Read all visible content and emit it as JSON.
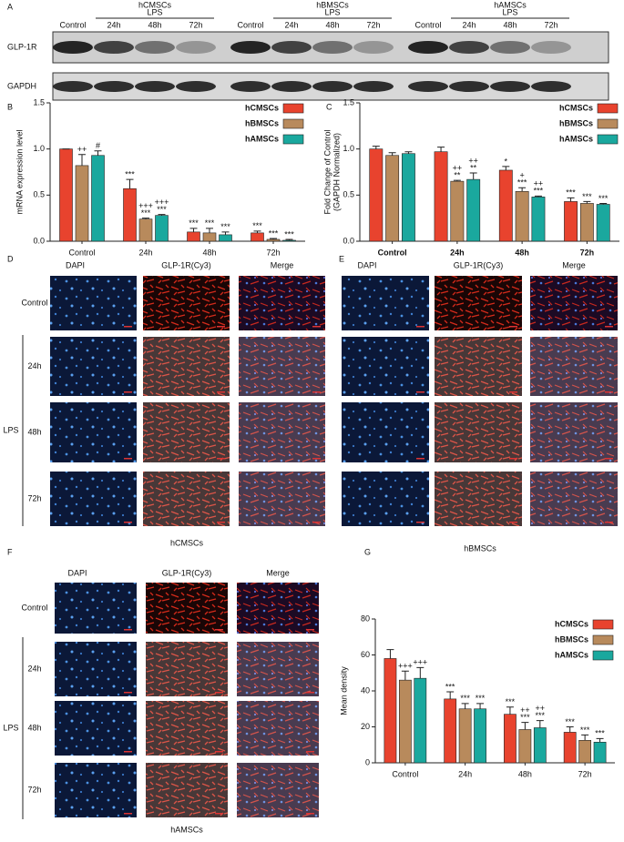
{
  "panel_a": {
    "label": "A",
    "rows": [
      "GLP-1R",
      "GAPDH"
    ],
    "groups": [
      {
        "name": "hCMSCs",
        "treatment": "LPS",
        "lanes": [
          "Control",
          "24h",
          "48h",
          "72h"
        ]
      },
      {
        "name": "hBMSCs",
        "treatment": "LPS",
        "lanes": [
          "Control",
          "24h",
          "48h",
          "72h"
        ]
      },
      {
        "name": "hAMSCs",
        "treatment": "LPS",
        "lanes": [
          "Control",
          "24h",
          "48h",
          "72h"
        ]
      }
    ]
  },
  "chart_data": [
    {
      "type": "bar",
      "panel": "B",
      "ylabel": "mRNA expression level",
      "categories": [
        "Control",
        "24h",
        "48h",
        "72h"
      ],
      "ylim": [
        0,
        1.5
      ],
      "yticks": [
        {
          "value": 0,
          "label": "0.0"
        },
        0.5,
        {
          "value": 1,
          "label": "1.0"
        },
        1.5
      ],
      "legend": "upper right",
      "series": [
        {
          "name": "hCMSCs",
          "color": "#e8432e",
          "values": [
            1.0,
            0.57,
            0.1,
            0.09
          ],
          "errors": [
            0,
            0.1,
            0.04,
            0.02
          ],
          "annotations": [
            null,
            [
              "***"
            ],
            [
              "***"
            ],
            [
              "***"
            ]
          ]
        },
        {
          "name": "hBMSCs",
          "color": "#b88a5c",
          "values": [
            0.82,
            0.24,
            0.09,
            0.02
          ],
          "errors": [
            0.12,
            0.01,
            0.05,
            0.01
          ],
          "annotations": [
            [
              "++"
            ],
            [
              "+++",
              "***"
            ],
            [
              "***"
            ],
            [
              "***"
            ]
          ]
        },
        {
          "name": "hAMSCs",
          "color": "#1aa89e",
          "values": [
            0.93,
            0.28,
            0.07,
            0.01
          ],
          "errors": [
            0.05,
            0.01,
            0.03,
            0.01
          ],
          "annotations": [
            [
              "#"
            ],
            [
              "+++",
              "***"
            ],
            [
              "***"
            ],
            [
              "***"
            ]
          ]
        }
      ]
    },
    {
      "type": "bar",
      "panel": "C",
      "ylabel": [
        "Fold Change of Control",
        "(GAPDH Normalized)"
      ],
      "bold_categories": true,
      "categories": [
        "Control",
        "24h",
        "48h",
        "72h"
      ],
      "ylim": [
        0,
        1.5
      ],
      "yticks": [
        {
          "value": 0,
          "label": "0.0"
        },
        0.5,
        {
          "value": 1,
          "label": "1.0"
        },
        1.5
      ],
      "legend": "upper right",
      "series": [
        {
          "name": "hCMSCs",
          "color": "#e8432e",
          "values": [
            1.0,
            0.97,
            0.77,
            0.43
          ],
          "errors": [
            0.03,
            0.05,
            0.04,
            0.04
          ],
          "annotations": [
            null,
            null,
            [
              "*"
            ],
            [
              "***"
            ]
          ]
        },
        {
          "name": "hBMSCs",
          "color": "#b88a5c",
          "values": [
            0.93,
            0.65,
            0.54,
            0.41
          ],
          "errors": [
            0.03,
            0.01,
            0.04,
            0.02
          ],
          "annotations": [
            null,
            [
              "++",
              "**"
            ],
            [
              "+",
              "***"
            ],
            [
              "***"
            ]
          ]
        },
        {
          "name": "hAMSCs",
          "color": "#1aa89e",
          "values": [
            0.95,
            0.67,
            0.48,
            0.4
          ],
          "errors": [
            0.02,
            0.07,
            0.01,
            0.01
          ],
          "annotations": [
            null,
            [
              "++",
              "**"
            ],
            [
              "++",
              "***"
            ],
            [
              "***"
            ]
          ]
        }
      ]
    },
    {
      "type": "bar",
      "panel": "G",
      "ylabel": "Mean density",
      "categories": [
        "Control",
        "24h",
        "48h",
        "72h"
      ],
      "ylim": [
        0,
        80
      ],
      "yticks": [
        0,
        20,
        40,
        60,
        80
      ],
      "legend": "upper right",
      "series": [
        {
          "name": "hCMSCs",
          "color": "#e8432e",
          "values": [
            58,
            35.5,
            27,
            17
          ],
          "errors": [
            5,
            4,
            4,
            3
          ],
          "annotations": [
            null,
            [
              "***"
            ],
            [
              "***"
            ],
            [
              "***"
            ]
          ]
        },
        {
          "name": "hBMSCs",
          "color": "#b88a5c",
          "values": [
            46,
            30,
            18.5,
            12.5
          ],
          "errors": [
            5,
            3,
            4,
            3
          ],
          "annotations": [
            [
              "+++"
            ],
            [
              "***"
            ],
            [
              "++",
              "***"
            ],
            [
              "***"
            ]
          ]
        },
        {
          "name": "hAMSCs",
          "color": "#1aa89e",
          "values": [
            47,
            30,
            19.5,
            11.5
          ],
          "errors": [
            6,
            3,
            4,
            2
          ],
          "annotations": [
            [
              "+++"
            ],
            [
              "***"
            ],
            [
              "++",
              "***"
            ],
            [
              "***"
            ]
          ]
        }
      ]
    }
  ],
  "panels": [
    {
      "label": "D",
      "columns": [
        "DAPI",
        "GLP-1R(Cy3)",
        "Merge"
      ],
      "rows": [
        "Control",
        "24h",
        "48h",
        "72h"
      ],
      "group": "LPS",
      "caption": "hCMSCs"
    },
    {
      "label": "E",
      "columns": [
        "DAPI",
        "GLP-1R(Cy3)",
        "Merge"
      ],
      "caption": "hBMSCs"
    },
    {
      "label": "F",
      "columns": [
        "DAPI",
        "GLP-1R(Cy3)",
        "Merge"
      ],
      "rows": [
        "Control",
        "24h",
        "48h",
        "72h"
      ],
      "group": "LPS",
      "caption": "hAMSCs"
    }
  ]
}
